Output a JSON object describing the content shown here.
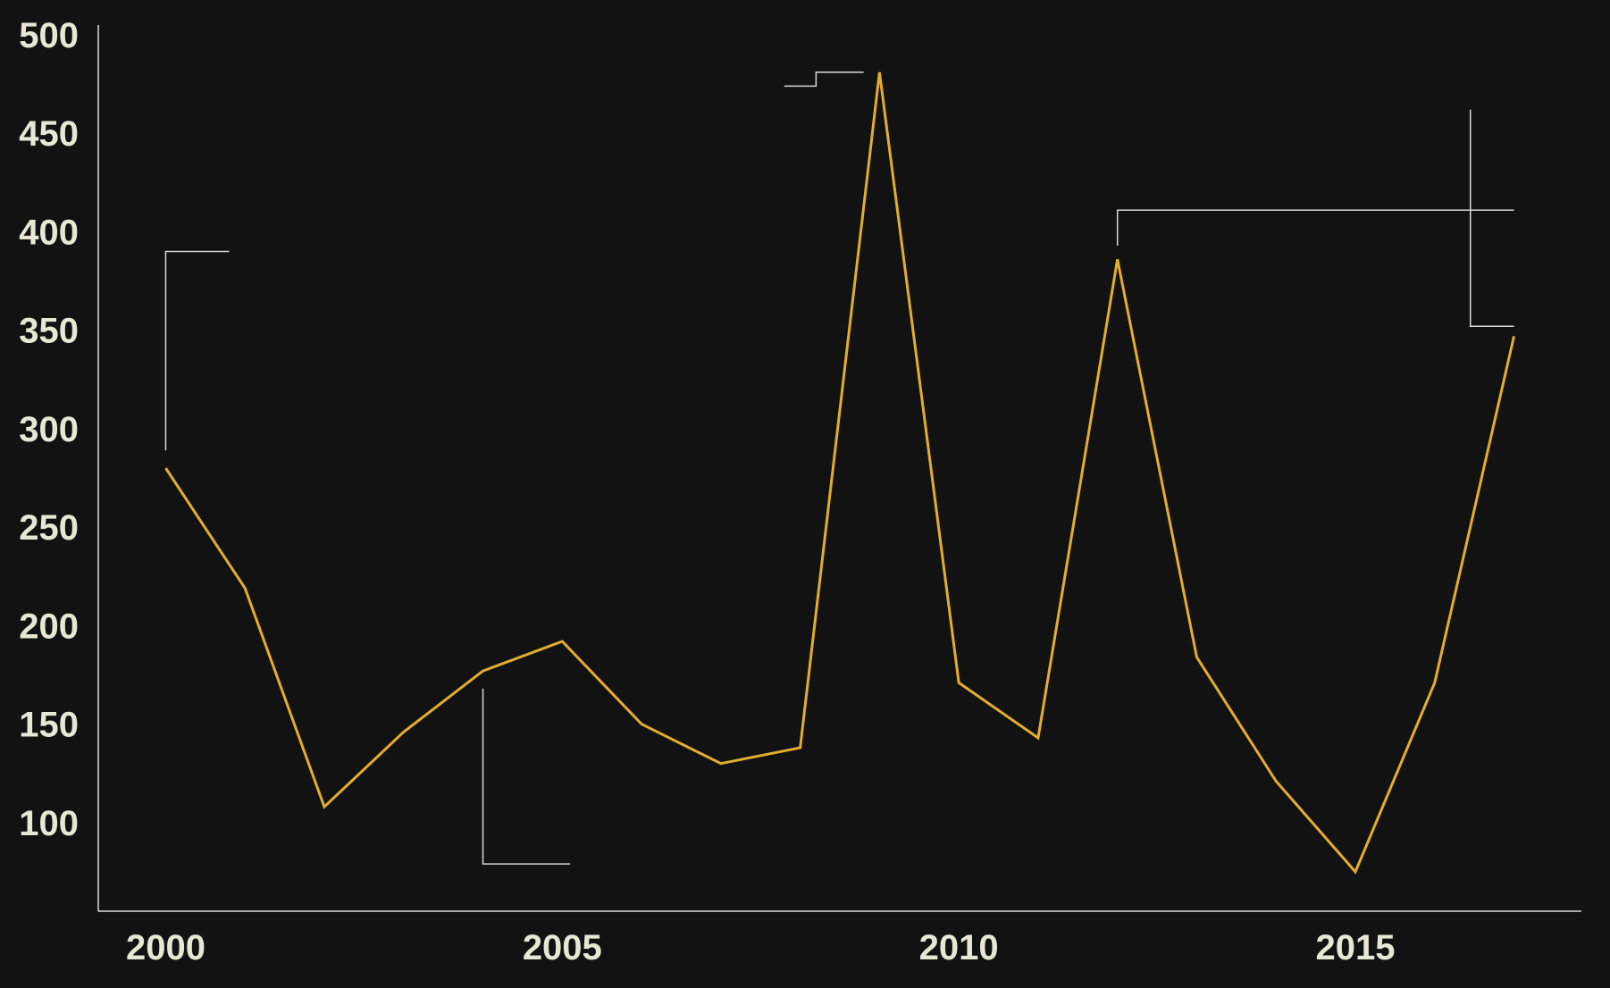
{
  "chart_data": {
    "type": "line",
    "title": "",
    "xlabel": "",
    "ylabel": "",
    "x": [
      2000,
      2001,
      2002,
      2003,
      2004,
      2005,
      2006,
      2007,
      2008,
      2009,
      2010,
      2011,
      2012,
      2013,
      2014,
      2015,
      2016,
      2017
    ],
    "series": [
      {
        "color": "#e3ad2e",
        "values": [
          280,
          219,
          108,
          146,
          177,
          192,
          150,
          130,
          138,
          481,
          171,
          143,
          386,
          184,
          121,
          75,
          171,
          347
        ]
      }
    ],
    "xticks": [
      2000,
      2005,
      2010,
      2015
    ],
    "xtick_labels": [
      "2000",
      "2005",
      "2010",
      "2015"
    ],
    "yticks": [
      100,
      150,
      200,
      250,
      300,
      350,
      400,
      450,
      500
    ],
    "ytick_labels": [
      "100",
      "150",
      "200",
      "250",
      "300",
      "350",
      "400",
      "450",
      "500"
    ],
    "ylim": [
      55,
      505
    ],
    "xlim": [
      1999.15,
      2017.85
    ],
    "grid": false,
    "legend": "none",
    "annotations": [
      {
        "type": "bracket",
        "x_from": 2000,
        "x_to": 2000.8,
        "y_from": 289,
        "y_to": 390
      },
      {
        "type": "bracket",
        "x_from": 2004,
        "x_to": 2005.1,
        "y_from": 168,
        "y_to": 79
      },
      {
        "type": "step",
        "x_from": 2007.8,
        "x_to": 2008.8,
        "y_from": 474,
        "y_to": 481
      },
      {
        "type": "bracket",
        "x_from": 2012,
        "x_to": 2017,
        "y_from": 393,
        "y_to": 411
      },
      {
        "type": "bracket",
        "x_from": 2016.45,
        "x_to": 2017,
        "y_from": 462,
        "y_to": 352
      }
    ],
    "colors": {
      "background": "#121212",
      "axis": "#d9d9d9",
      "tick_text": "#e8e6d4",
      "annotation": "#d9d9d9"
    }
  }
}
